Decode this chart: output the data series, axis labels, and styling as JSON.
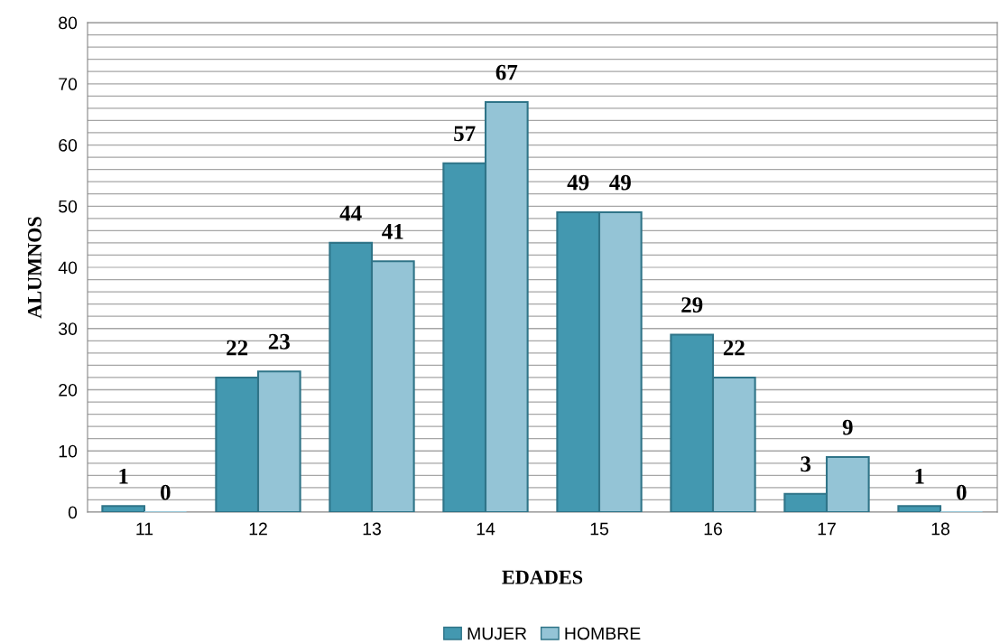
{
  "chart_data": {
    "type": "bar",
    "xlabel": "EDADES",
    "ylabel": "ALUMNOS",
    "categories": [
      "11",
      "12",
      "13",
      "14",
      "15",
      "16",
      "17",
      "18"
    ],
    "series": [
      {
        "name": "MUJER",
        "color": "#4398b0",
        "values": [
          1,
          22,
          44,
          57,
          49,
          29,
          3,
          1
        ]
      },
      {
        "name": "HOMBRE",
        "color": "#94c4d6",
        "values": [
          0,
          23,
          41,
          67,
          49,
          22,
          9,
          0
        ]
      }
    ],
    "ylim": [
      0,
      80
    ],
    "yticks": [
      0,
      {
        "value": 2,
        "label": null
      },
      {
        "value": 4,
        "label": null
      },
      {
        "value": 6,
        "label": null
      },
      {
        "value": 8,
        "label": null
      },
      10,
      {
        "value": 12,
        "label": null
      },
      {
        "value": 14,
        "label": null
      },
      {
        "value": 16,
        "label": null
      },
      {
        "value": 18,
        "label": null
      },
      20,
      {
        "value": 22,
        "label": null
      },
      {
        "value": 24,
        "label": null
      },
      {
        "value": 26,
        "label": null
      },
      {
        "value": 28,
        "label": null
      },
      30,
      {
        "value": 32,
        "label": null
      },
      {
        "value": 34,
        "label": null
      },
      {
        "value": 36,
        "label": null
      },
      {
        "value": 38,
        "label": null
      },
      40,
      {
        "value": 42,
        "label": null
      },
      {
        "value": 44,
        "label": null
      },
      {
        "value": 46,
        "label": null
      },
      {
        "value": 48,
        "label": null
      },
      50,
      {
        "value": 52,
        "label": null
      },
      {
        "value": 54,
        "label": null
      },
      {
        "value": 56,
        "label": null
      },
      {
        "value": 58,
        "label": null
      },
      60,
      {
        "value": 62,
        "label": null
      },
      {
        "value": 64,
        "label": null
      },
      {
        "value": 66,
        "label": null
      },
      {
        "value": 68,
        "label": null
      },
      70,
      {
        "value": 72,
        "label": null
      },
      {
        "value": 74,
        "label": null
      },
      {
        "value": 76,
        "label": null
      },
      {
        "value": 78,
        "label": null
      },
      80
    ],
    "grid": "y",
    "legend": "bottom",
    "data_labels": true
  }
}
